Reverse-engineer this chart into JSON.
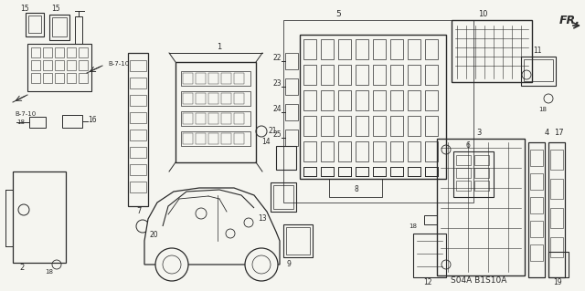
{
  "bg_color": "#f5f5f0",
  "line_color": "#2a2a2a",
  "code": "S04A B1S10A",
  "fr_label": "FR.",
  "fig_w": 6.4,
  "fig_h": 3.19,
  "dpi": 100
}
